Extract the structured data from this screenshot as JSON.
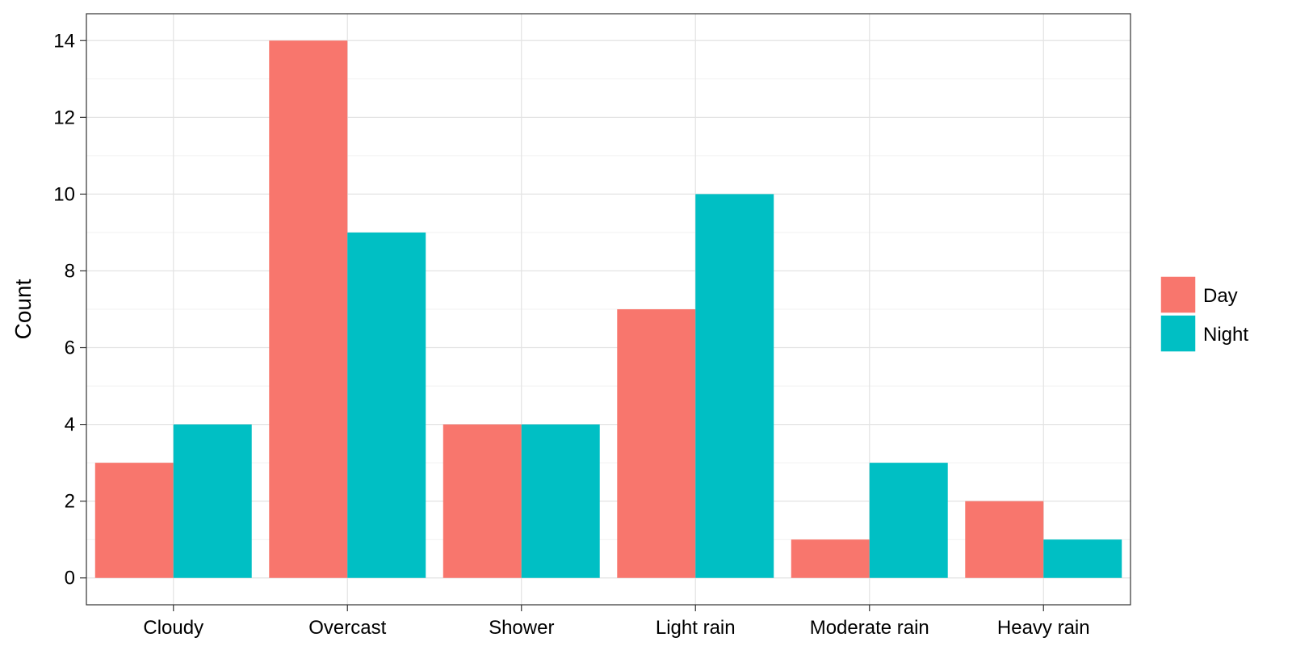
{
  "chart_data": {
    "type": "bar",
    "title": "",
    "xlabel": "",
    "ylabel": "Count",
    "categories": [
      "Cloudy",
      "Overcast",
      "Shower",
      "Light rain",
      "Moderate rain",
      "Heavy rain"
    ],
    "series": [
      {
        "name": "Day",
        "color": "#F8766D",
        "values": [
          3,
          14,
          4,
          7,
          1,
          2
        ]
      },
      {
        "name": "Night",
        "color": "#00BFC4",
        "values": [
          4,
          9,
          4,
          10,
          3,
          1
        ]
      }
    ],
    "ylim": [
      -0.7,
      14.7
    ],
    "yticks": [
      0,
      2,
      4,
      6,
      8,
      10,
      12,
      14
    ],
    "grid": true,
    "legend_position": "right"
  }
}
